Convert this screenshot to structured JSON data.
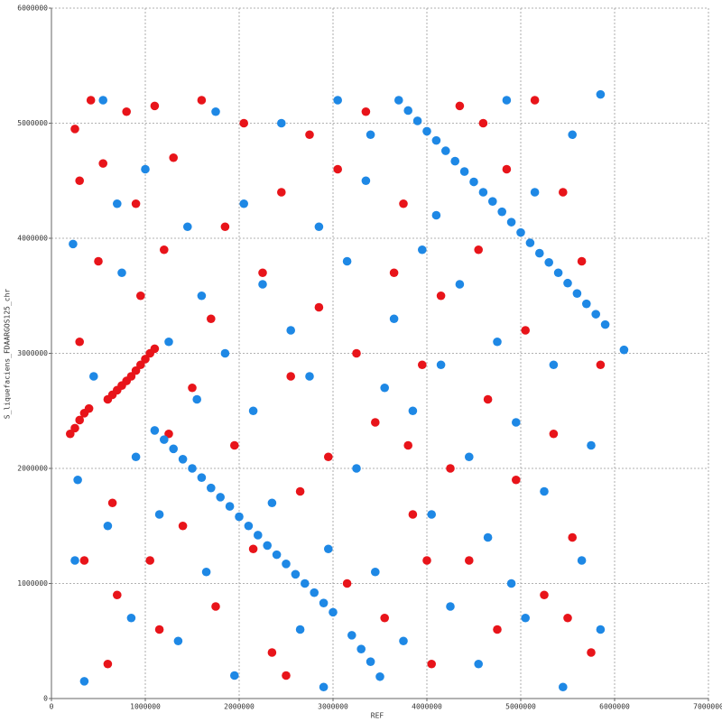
{
  "chart_data": {
    "type": "scatter",
    "x_label": "REF",
    "y_label": "S_liquefaciens_FDAARGOS125_chr",
    "xlim": [
      0,
      7000000
    ],
    "ylim": [
      0,
      6000000
    ],
    "xticks": [
      0,
      1000000,
      2000000,
      3000000,
      4000000,
      5000000,
      6000000,
      7000000
    ],
    "yticks": [
      0,
      1000000,
      2000000,
      3000000,
      4000000,
      5000000,
      6000000
    ],
    "grid": true,
    "series": [
      {
        "color": "#e8141a",
        "x": [
          200000,
          250000,
          300000,
          350000,
          400000,
          600000,
          650000,
          700000,
          750000,
          800000,
          850000,
          900000,
          950000,
          1000000,
          1050000,
          1100000,
          250000,
          300000,
          420000,
          500000,
          550000,
          650000,
          700000,
          800000,
          900000,
          950000,
          1050000,
          1150000,
          1200000,
          1300000,
          1400000,
          1500000,
          1600000,
          1700000,
          1750000,
          1850000,
          1950000,
          2050000,
          2150000,
          2250000,
          2350000,
          2450000,
          2550000,
          2650000,
          2750000,
          2850000,
          2950000,
          3050000,
          3150000,
          3250000,
          3350000,
          3450000,
          3550000,
          3650000,
          3750000,
          3850000,
          3950000,
          4050000,
          4150000,
          4250000,
          4350000,
          4450000,
          4550000,
          4650000,
          4750000,
          4850000,
          4950000,
          5050000,
          5150000,
          5250000,
          5350000,
          5450000,
          5550000,
          5650000,
          5750000,
          5850000,
          300000,
          600000,
          1100000,
          2500000,
          4000000,
          4600000,
          5500000,
          350000,
          1250000,
          3800000
        ],
        "values": [
          2300000,
          2350000,
          2420000,
          2480000,
          2520000,
          2600000,
          2640000,
          2680000,
          2720000,
          2760000,
          2800000,
          2850000,
          2900000,
          2950000,
          3000000,
          3040000,
          4950000,
          4500000,
          5200000,
          3800000,
          4650000,
          1700000,
          900000,
          5100000,
          4300000,
          3500000,
          1200000,
          600000,
          3900000,
          4700000,
          1500000,
          2700000,
          5200000,
          3300000,
          800000,
          4100000,
          2200000,
          5000000,
          1300000,
          3700000,
          400000,
          4400000,
          2800000,
          1800000,
          4900000,
          3400000,
          2100000,
          4600000,
          1000000,
          3000000,
          5100000,
          2400000,
          700000,
          3700000,
          4300000,
          1600000,
          2900000,
          300000,
          3500000,
          2000000,
          5150000,
          1200000,
          3900000,
          2600000,
          600000,
          4600000,
          1900000,
          3200000,
          5200000,
          900000,
          2300000,
          4400000,
          1400000,
          3800000,
          400000,
          2900000,
          3100000,
          300000,
          5150000,
          200000,
          1200000,
          5000000,
          700000,
          1200000,
          2300000,
          2200000
        ]
      },
      {
        "color": "#1e88e5",
        "x": [
          1100000,
          1200000,
          1300000,
          1400000,
          1500000,
          1600000,
          1700000,
          1800000,
          1900000,
          2000000,
          2100000,
          2200000,
          2300000,
          2400000,
          2500000,
          2600000,
          2700000,
          2800000,
          2900000,
          3000000,
          3200000,
          3300000,
          3400000,
          3500000,
          3700000,
          3800000,
          3900000,
          4000000,
          4100000,
          4200000,
          4300000,
          4400000,
          4500000,
          4600000,
          4700000,
          4800000,
          4900000,
          5000000,
          5100000,
          5200000,
          5300000,
          5400000,
          5500000,
          5600000,
          5700000,
          5800000,
          5900000,
          230000,
          280000,
          350000,
          450000,
          550000,
          600000,
          750000,
          850000,
          900000,
          1000000,
          1150000,
          1250000,
          1350000,
          1450000,
          1550000,
          1650000,
          1750000,
          1850000,
          1950000,
          2050000,
          2150000,
          2250000,
          2350000,
          2450000,
          2550000,
          2650000,
          2750000,
          2850000,
          2950000,
          3050000,
          3150000,
          3250000,
          3350000,
          3450000,
          3550000,
          3650000,
          3750000,
          3850000,
          3950000,
          4050000,
          4150000,
          4250000,
          4350000,
          4450000,
          4550000,
          4650000,
          4750000,
          4850000,
          4950000,
          5050000,
          5150000,
          5250000,
          5350000,
          5450000,
          5550000,
          5650000,
          5750000,
          5850000,
          5850000,
          250000,
          700000,
          1600000,
          2900000,
          3400000,
          4100000,
          4900000,
          6100000
        ],
        "values": [
          2330000,
          2250000,
          2170000,
          2080000,
          2000000,
          1920000,
          1830000,
          1750000,
          1670000,
          1580000,
          1500000,
          1420000,
          1330000,
          1250000,
          1170000,
          1080000,
          1000000,
          920000,
          830000,
          750000,
          550000,
          430000,
          320000,
          190000,
          5200000,
          5110000,
          5020000,
          4930000,
          4850000,
          4760000,
          4670000,
          4580000,
          4490000,
          4400000,
          4320000,
          4230000,
          4140000,
          4050000,
          3960000,
          3870000,
          3790000,
          3700000,
          3610000,
          3520000,
          3430000,
          3340000,
          3250000,
          3950000,
          1900000,
          150000,
          2800000,
          5200000,
          1500000,
          3700000,
          700000,
          2100000,
          4600000,
          1600000,
          3100000,
          500000,
          4100000,
          2600000,
          1100000,
          5100000,
          3000000,
          200000,
          4300000,
          2500000,
          3600000,
          1700000,
          5000000,
          3200000,
          600000,
          2800000,
          4100000,
          1300000,
          5200000,
          3800000,
          2000000,
          4500000,
          1100000,
          2700000,
          3300000,
          500000,
          2500000,
          3900000,
          1600000,
          2900000,
          800000,
          3600000,
          2100000,
          300000,
          1400000,
          3100000,
          5200000,
          2400000,
          700000,
          4400000,
          1800000,
          2900000,
          100000,
          4900000,
          1200000,
          2200000,
          5250000,
          600000,
          1200000,
          4300000,
          3500000,
          100000,
          4900000,
          4200000,
          1000000,
          3030000
        ]
      }
    ]
  }
}
